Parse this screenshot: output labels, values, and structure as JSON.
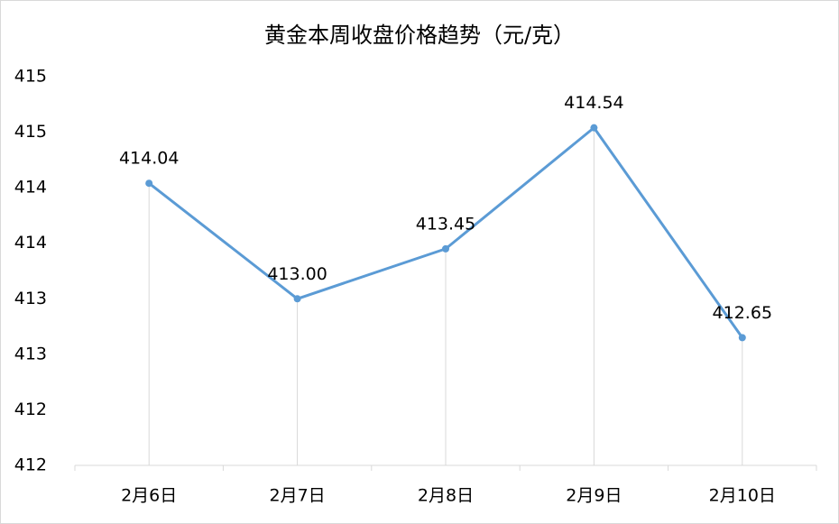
{
  "chart_data": {
    "type": "line",
    "title": "黄金本周收盘价格趋势（元/克）",
    "categories": [
      "2月6日",
      "2月7日",
      "2月8日",
      "2月9日",
      "2月10日"
    ],
    "series": [
      {
        "color": "#5b9bd5",
        "values": [
          414.04,
          413.0,
          413.45,
          414.54,
          412.65
        ],
        "value_labels": [
          "414.04",
          "413.00",
          "413.45",
          "414.54",
          "412.65"
        ]
      }
    ],
    "ylim": [
      411.5,
      415
    ],
    "yticks": [
      {
        "value": 411.5,
        "label": "412"
      },
      {
        "value": 412,
        "label": "412"
      },
      {
        "value": 412.5,
        "label": "413"
      },
      {
        "value": 413,
        "label": "413"
      },
      {
        "value": 413.5,
        "label": "414"
      },
      {
        "value": 414,
        "label": "414"
      },
      {
        "value": 414.5,
        "label": "415"
      },
      {
        "value": 415,
        "label": "415"
      }
    ],
    "drop_lines": true
  }
}
